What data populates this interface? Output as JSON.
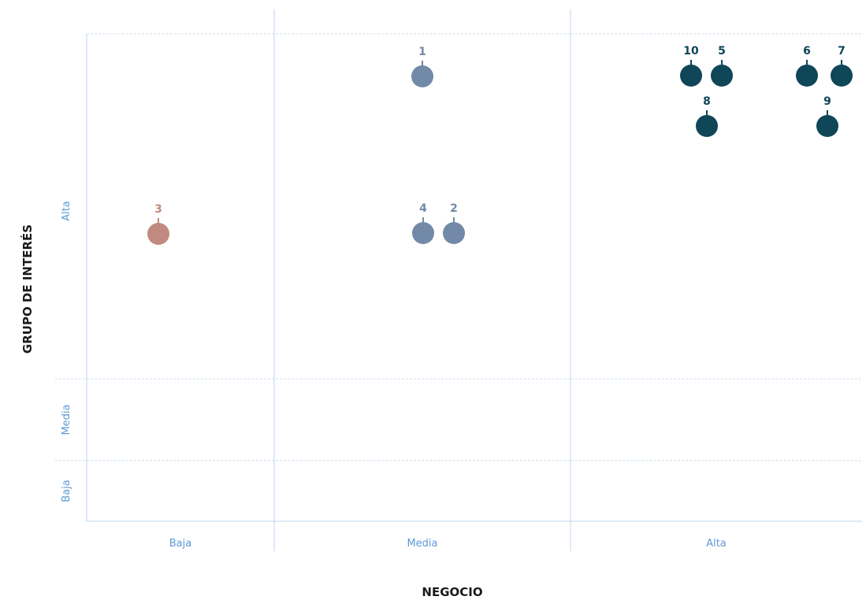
{
  "chart_data": {
    "type": "scatter",
    "title": "",
    "xlabel": "NEGOCIO",
    "ylabel": "GRUPO DE INTERÉS",
    "x_categories": [
      "Baja",
      "Media",
      "Alta"
    ],
    "y_categories": [
      "Baja",
      "Media",
      "Alta"
    ],
    "grid": true,
    "colors": {
      "axis_label": "#1a1a1a",
      "tick_label": "#5b9bd5",
      "grid": "#bcd6ee"
    },
    "points": [
      {
        "label": "1",
        "x": "Media",
        "y": "Alta",
        "color": "#7389a8"
      },
      {
        "label": "2",
        "x": "Media",
        "y": "Alta",
        "color": "#7389a8"
      },
      {
        "label": "3",
        "x": "Baja",
        "y": "Alta",
        "color": "#c08a80"
      },
      {
        "label": "4",
        "x": "Media",
        "y": "Alta",
        "color": "#7389a8"
      },
      {
        "label": "5",
        "x": "Alta",
        "y": "Alta",
        "color": "#0f4658"
      },
      {
        "label": "6",
        "x": "Alta",
        "y": "Alta",
        "color": "#0f4658"
      },
      {
        "label": "7",
        "x": "Alta",
        "y": "Alta",
        "color": "#0f4658"
      },
      {
        "label": "8",
        "x": "Alta",
        "y": "Alta",
        "color": "#0f4658"
      },
      {
        "label": "9",
        "x": "Alta",
        "y": "Alta",
        "color": "#0f4658"
      },
      {
        "label": "10",
        "x": "Alta",
        "y": "Alta",
        "color": "#0f4658"
      }
    ]
  }
}
